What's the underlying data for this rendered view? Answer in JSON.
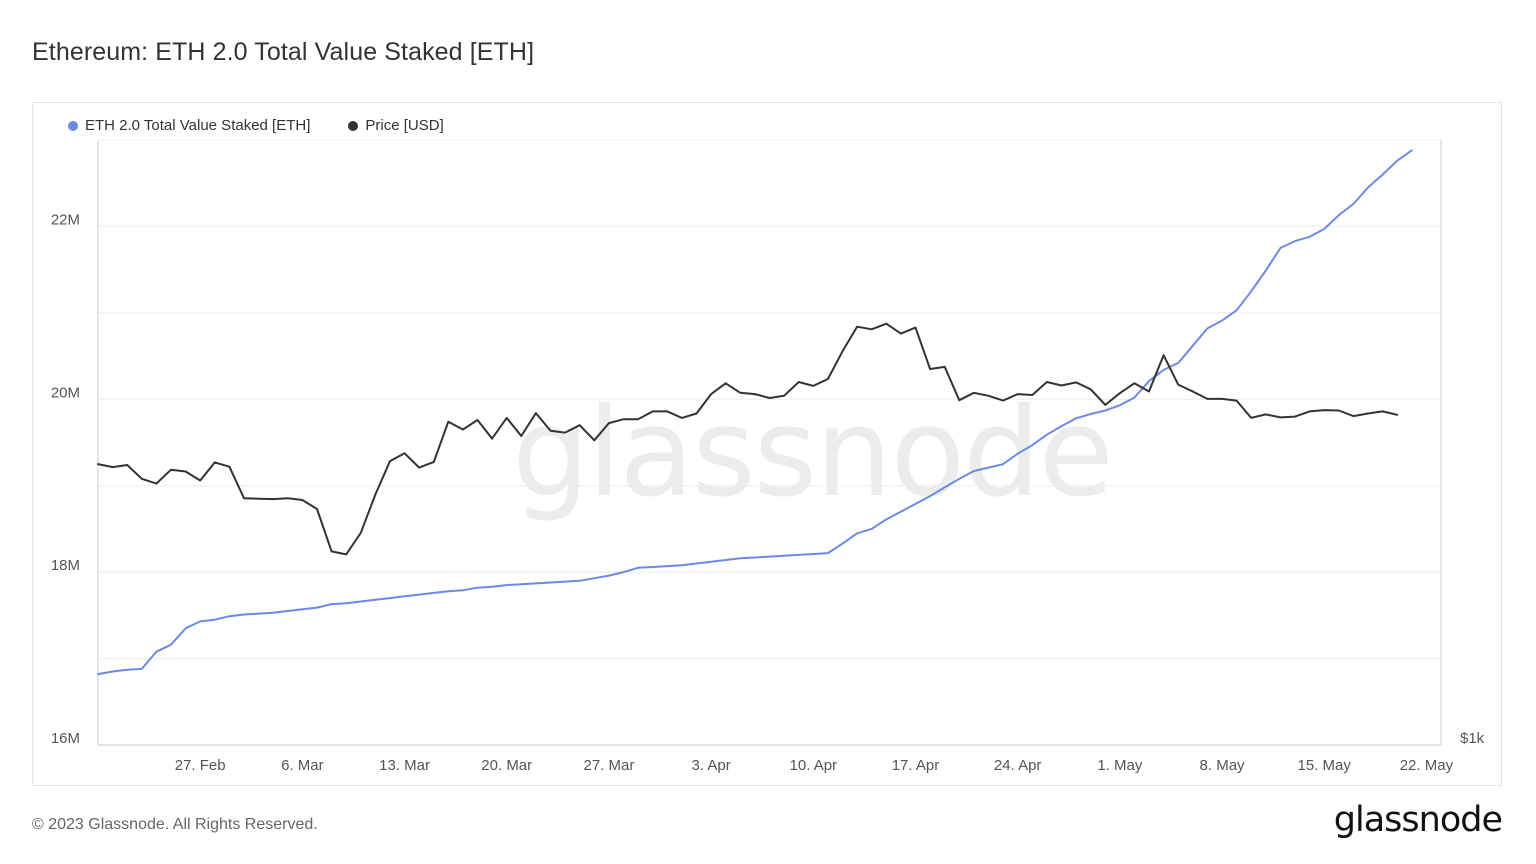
{
  "header": {
    "title": "Ethereum: ETH 2.0 Total Value Staked [ETH]"
  },
  "legend": {
    "items": [
      {
        "label": "ETH 2.0 Total Value Staked [ETH]",
        "color": "#6b8ae6"
      },
      {
        "label": "Price [USD]",
        "color": "#333333"
      }
    ]
  },
  "watermark": "glassnode",
  "footer": {
    "copyright": "© 2023 Glassnode. All Rights Reserved.",
    "brand": "glassnode"
  },
  "chart_data": {
    "type": "line",
    "title": "Ethereum: ETH 2.0 Total Value Staked [ETH]",
    "xlabel": "",
    "ylabel": "",
    "x_ticks": [
      "27. Feb",
      "6. Mar",
      "13. Mar",
      "20. Mar",
      "27. Mar",
      "3. Apr",
      "10. Apr",
      "17. Apr",
      "24. Apr",
      "1. May",
      "8. May",
      "15. May",
      "22. May"
    ],
    "x_tick_day_index": [
      7,
      14,
      21,
      28,
      35,
      42,
      49,
      56,
      63,
      70,
      77,
      84,
      91
    ],
    "x_range_day_index": [
      0,
      92
    ],
    "y_left": {
      "ticks": [
        "16M",
        "18M",
        "20M",
        "22M"
      ],
      "tick_values": [
        16000000,
        18000000,
        20000000,
        22000000
      ],
      "range": [
        16000000,
        23000000
      ]
    },
    "y_right": {
      "ticks": [
        "$1k"
      ],
      "tick_values": [
        1000
      ],
      "range": [
        1000,
        2400
      ]
    },
    "grid": true,
    "legend_position": "top-left",
    "series": [
      {
        "name": "ETH 2.0 Total Value Staked [ETH]",
        "color": "#6b8ae6",
        "axis": "left",
        "x_start_day_index": 0,
        "values": [
          16820000,
          16850000,
          16870000,
          16880000,
          17080000,
          17160000,
          17350000,
          17430000,
          17450000,
          17490000,
          17510000,
          17520000,
          17530000,
          17550000,
          17570000,
          17590000,
          17630000,
          17640000,
          17660000,
          17680000,
          17700000,
          17720000,
          17740000,
          17760000,
          17780000,
          17790000,
          17820000,
          17830000,
          17850000,
          17860000,
          17870000,
          17880000,
          17890000,
          17900000,
          17930000,
          17960000,
          18000000,
          18050000,
          18060000,
          18070000,
          18080000,
          18100000,
          18120000,
          18140000,
          18160000,
          18170000,
          18180000,
          18190000,
          18200000,
          18210000,
          18220000,
          18330000,
          18450000,
          18500000,
          18610000,
          18700000,
          18790000,
          18880000,
          18980000,
          19080000,
          19170000,
          19210000,
          19250000,
          19370000,
          19470000,
          19590000,
          19690000,
          19780000,
          19830000,
          19870000,
          19930000,
          20020000,
          20210000,
          20340000,
          20420000,
          20620000,
          20820000,
          20910000,
          21030000,
          21250000,
          21490000,
          21750000,
          21830000,
          21880000,
          21970000,
          22130000,
          22260000,
          22450000,
          22600000,
          22760000,
          22880000
        ]
      },
      {
        "name": "Price [USD]",
        "color": "#333333",
        "axis": "right",
        "x_start_day_index": 0,
        "values": [
          1650,
          1643,
          1648,
          1616,
          1605,
          1637,
          1633,
          1612,
          1654,
          1644,
          1571,
          1570,
          1569,
          1571,
          1567,
          1546,
          1448,
          1441,
          1491,
          1580,
          1657,
          1675,
          1642,
          1655,
          1748,
          1730,
          1752,
          1709,
          1757,
          1715,
          1768,
          1727,
          1723,
          1740,
          1705,
          1745,
          1754,
          1754,
          1772,
          1772,
          1757,
          1767,
          1812,
          1837,
          1815,
          1812,
          1803,
          1808,
          1840,
          1831,
          1847,
          1911,
          1968,
          1962,
          1975,
          1952,
          1966,
          1870,
          1875,
          1798,
          1815,
          1808,
          1797,
          1812,
          1810,
          1840,
          1832,
          1839,
          1823,
          1787,
          1814,
          1837,
          1818,
          1902,
          1834,
          1818,
          1801,
          1801,
          1797,
          1757,
          1765,
          1758,
          1760,
          1772,
          1775,
          1774,
          1761,
          1767,
          1772,
          1764
        ]
      }
    ]
  }
}
